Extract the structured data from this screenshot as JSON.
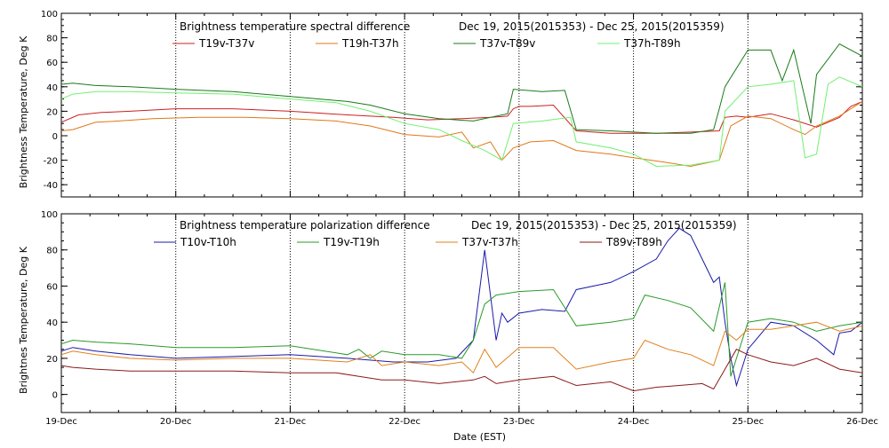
{
  "chart_data": [
    {
      "type": "line",
      "title": "Brightness temperature spectral difference",
      "subtitle": "Dec 19, 2015(2015353) - Dec 25, 2015(2015359)",
      "ylabel": "Brightness Temperature, Deg K",
      "xlabel": "",
      "xlim": [
        0,
        7
      ],
      "ylim": [
        -50,
        100
      ],
      "yticks": [
        "-40",
        "-20",
        "0",
        "20",
        "40",
        "60",
        "80",
        "100"
      ],
      "grid": "dotted vertical at day boundaries",
      "legend_position": "top",
      "series": [
        {
          "name": "T19v-T37v",
          "color": "#cc2020",
          "x": [
            0,
            0.15,
            0.35,
            0.6,
            1.0,
            1.5,
            2.0,
            2.5,
            2.9,
            3.2,
            3.5,
            3.75,
            3.9,
            3.95,
            4.0,
            4.1,
            4.3,
            4.5,
            4.8,
            5.0,
            5.2,
            5.5,
            5.75,
            5.8,
            5.9,
            6.0,
            6.2,
            6.4,
            6.6,
            6.8,
            6.9,
            7.0
          ],
          "y": [
            11,
            17,
            19,
            20,
            22,
            22,
            20,
            17,
            15,
            13,
            14,
            15,
            16,
            22,
            24,
            24,
            25,
            4,
            2,
            2,
            2,
            3,
            4,
            15,
            16,
            15,
            18,
            13,
            7,
            15,
            24,
            28
          ]
        },
        {
          "name": "T19h-T37h",
          "color": "#e07818",
          "x": [
            0,
            0.1,
            0.3,
            0.5,
            0.8,
            1.2,
            1.6,
            2.0,
            2.4,
            2.7,
            3.0,
            3.3,
            3.5,
            3.6,
            3.75,
            3.85,
            3.95,
            4.1,
            4.3,
            4.5,
            4.8,
            5.0,
            5.3,
            5.5,
            5.75,
            5.85,
            6.0,
            6.2,
            6.4,
            6.5,
            6.6,
            6.8,
            7.0
          ],
          "y": [
            4,
            5,
            11,
            12,
            14,
            15,
            15,
            14,
            12,
            8,
            1,
            -1,
            3,
            -10,
            -5,
            -20,
            -10,
            -5,
            -4,
            -12,
            -15,
            -18,
            -22,
            -25,
            -20,
            8,
            16,
            14,
            5,
            1,
            8,
            16,
            28
          ]
        },
        {
          "name": "T37v-T89v",
          "color": "#1a7a1a",
          "x": [
            0,
            0.1,
            0.3,
            0.6,
            1.0,
            1.5,
            2.0,
            2.5,
            2.7,
            3.0,
            3.3,
            3.6,
            3.9,
            3.95,
            4.2,
            4.4,
            4.5,
            4.8,
            5.0,
            5.2,
            5.5,
            5.7,
            5.75,
            5.8,
            6.0,
            6.2,
            6.3,
            6.4,
            6.55,
            6.6,
            6.8,
            7.0
          ],
          "y": [
            42,
            43,
            41,
            40,
            38,
            36,
            32,
            28,
            25,
            18,
            14,
            12,
            18,
            38,
            36,
            37,
            5,
            4,
            3,
            2,
            2,
            5,
            22,
            40,
            70,
            70,
            45,
            70,
            10,
            50,
            75,
            65
          ]
        },
        {
          "name": "T37h-T89h",
          "color": "#70f070",
          "x": [
            0,
            0.1,
            0.3,
            0.6,
            1.0,
            1.5,
            2.0,
            2.4,
            2.7,
            3.0,
            3.3,
            3.5,
            3.7,
            3.85,
            3.95,
            4.2,
            4.45,
            4.5,
            4.8,
            5.0,
            5.2,
            5.5,
            5.75,
            5.8,
            6.0,
            6.2,
            6.4,
            6.5,
            6.6,
            6.7,
            6.8,
            7.0
          ],
          "y": [
            30,
            34,
            36,
            36,
            35,
            34,
            30,
            27,
            20,
            10,
            5,
            -4,
            -12,
            -20,
            10,
            12,
            15,
            -5,
            -10,
            -15,
            -25,
            -24,
            -20,
            20,
            40,
            42,
            45,
            -18,
            -15,
            42,
            48,
            40
          ]
        }
      ]
    },
    {
      "type": "line",
      "title": "Brightness temperature polarization difference",
      "subtitle": "Dec 19, 2015(2015353) - Dec 25, 2015(2015359)",
      "ylabel": "Brightnes Temperature, Deg K",
      "xlabel": "Date (EST)",
      "xlim": [
        0,
        7
      ],
      "ylim": [
        -10,
        100
      ],
      "yticks": [
        "0",
        "20",
        "40",
        "60",
        "80",
        "100"
      ],
      "xticks": [
        "19-Dec",
        "20-Dec",
        "21-Dec",
        "22-Dec",
        "23-Dec",
        "24-Dec",
        "25-Dec",
        "26-Dec"
      ],
      "grid": "dotted vertical at day boundaries",
      "legend_position": "top",
      "series": [
        {
          "name": "T10v-T10h",
          "color": "#1a1aaa",
          "x": [
            0,
            0.1,
            0.3,
            0.6,
            1.0,
            1.5,
            2.0,
            2.5,
            2.9,
            3.2,
            3.45,
            3.6,
            3.7,
            3.8,
            3.85,
            3.9,
            4.0,
            4.2,
            4.4,
            4.5,
            4.8,
            5.0,
            5.2,
            5.3,
            5.4,
            5.5,
            5.6,
            5.7,
            5.75,
            5.8,
            5.85,
            5.9,
            5.95,
            6.0,
            6.2,
            6.4,
            6.6,
            6.75,
            6.8,
            6.9,
            7.0
          ],
          "y": [
            24,
            26,
            24,
            22,
            20,
            21,
            22,
            20,
            18,
            18,
            20,
            30,
            80,
            30,
            45,
            40,
            45,
            47,
            46,
            58,
            62,
            68,
            75,
            85,
            92,
            88,
            75,
            62,
            65,
            40,
            20,
            5,
            15,
            25,
            40,
            38,
            30,
            22,
            34,
            35,
            40
          ]
        },
        {
          "name": "T19v-T19h",
          "color": "#2a9a2a",
          "x": [
            0,
            0.1,
            0.3,
            0.6,
            1.0,
            1.5,
            2.0,
            2.5,
            2.6,
            2.7,
            2.8,
            3.0,
            3.3,
            3.5,
            3.6,
            3.7,
            3.8,
            4.0,
            4.3,
            4.5,
            4.8,
            5.0,
            5.1,
            5.3,
            5.5,
            5.7,
            5.8,
            5.85,
            5.9,
            6.0,
            6.2,
            6.4,
            6.6,
            6.8,
            7.0
          ],
          "y": [
            28,
            30,
            29,
            28,
            26,
            26,
            27,
            22,
            25,
            20,
            24,
            22,
            22,
            20,
            30,
            50,
            55,
            57,
            58,
            38,
            40,
            42,
            55,
            52,
            48,
            35,
            62,
            10,
            20,
            40,
            42,
            40,
            35,
            38,
            40
          ]
        },
        {
          "name": "T37v-T37h",
          "color": "#e0801a",
          "x": [
            0,
            0.1,
            0.3,
            0.6,
            1.0,
            1.5,
            2.0,
            2.5,
            2.7,
            2.8,
            3.0,
            3.3,
            3.5,
            3.6,
            3.7,
            3.75,
            3.8,
            4.0,
            4.3,
            4.5,
            4.8,
            5.0,
            5.1,
            5.3,
            5.5,
            5.7,
            5.8,
            5.9,
            6.0,
            6.2,
            6.4,
            6.6,
            6.8,
            7.0
          ],
          "y": [
            22,
            24,
            22,
            20,
            19,
            20,
            20,
            18,
            22,
            16,
            18,
            16,
            18,
            12,
            25,
            20,
            15,
            26,
            26,
            14,
            18,
            20,
            30,
            25,
            22,
            16,
            35,
            30,
            36,
            36,
            38,
            40,
            35,
            38
          ]
        },
        {
          "name": "T89v-T89h",
          "color": "#8a1a1a",
          "x": [
            0,
            0.1,
            0.3,
            0.6,
            1.0,
            1.5,
            2.0,
            2.4,
            2.6,
            2.8,
            3.0,
            3.3,
            3.6,
            3.7,
            3.8,
            4.0,
            4.3,
            4.5,
            4.8,
            5.0,
            5.2,
            5.4,
            5.6,
            5.7,
            5.8,
            5.9,
            6.0,
            6.2,
            6.4,
            6.6,
            6.8,
            7.0
          ],
          "y": [
            16,
            15,
            14,
            13,
            13,
            13,
            12,
            12,
            10,
            8,
            8,
            6,
            8,
            10,
            6,
            8,
            10,
            5,
            7,
            2,
            4,
            5,
            6,
            3,
            14,
            25,
            22,
            18,
            16,
            20,
            14,
            12
          ]
        }
      ]
    }
  ]
}
